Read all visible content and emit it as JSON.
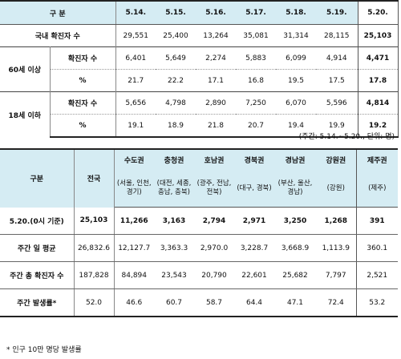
{
  "table1": {
    "header": [
      "구 분",
      "",
      "5.14.",
      "5.15.",
      "5.16.",
      "5.17.",
      "5.18.",
      "5.19.",
      "5.20."
    ],
    "domestic": {
      "label": "국내 확진자 수",
      "values": [
        "29,551",
        "25,400",
        "13,264",
        "35,081",
        "31,314",
        "28,115",
        "25,103"
      ]
    },
    "over60": {
      "label": "60세 이상",
      "count": {
        "label": "확진자 수",
        "values": [
          "6,401",
          "5,649",
          "2,274",
          "5,883",
          "6,099",
          "4,914",
          "4,471"
        ]
      },
      "pct": {
        "label": "%",
        "values": [
          "21.7",
          "22.2",
          "17.1",
          "16.8",
          "19.5",
          "17.5",
          "17.8"
        ]
      }
    },
    "under18": {
      "label": "18세 이하",
      "count": {
        "label": "확진자 수",
        "values": [
          "5,656",
          "4,798",
          "2,890",
          "7,250",
          "6,070",
          "5,596",
          "4,814"
        ]
      },
      "pct": {
        "label": "%",
        "values": [
          "19.1",
          "18.9",
          "21.8",
          "20.7",
          "19.4",
          "19.9",
          "19.2"
        ]
      }
    }
  },
  "unit_note": "(주간: 5.14.~5.20., 단위: 명)",
  "table2": {
    "corner": "구분",
    "national": "전국",
    "regions": [
      "수도권",
      "충청권",
      "호남권",
      "경북권",
      "경남권",
      "강원권",
      "제주권"
    ],
    "subregions": [
      "(서울, 인천, 경기)",
      "(대전, 세종, 충남, 충북)",
      "(광주, 전남, 전북)",
      "(대구, 경북)",
      "(부산, 울산, 경남)",
      "(강원)",
      "(제주)"
    ],
    "rows": [
      {
        "label": "5.20.(0시 기준)",
        "values": [
          "25,103",
          "11,266",
          "3,163",
          "2,794",
          "2,971",
          "3,250",
          "1,268",
          "391"
        ]
      },
      {
        "label": "주간 일 평균",
        "values": [
          "26,832.6",
          "12,127.7",
          "3,363.3",
          "2,970.0",
          "3,228.7",
          "3,668.9",
          "1,113.9",
          "360.1"
        ]
      },
      {
        "label": "주간 총 확진자 수",
        "values": [
          "187,828",
          "84,894",
          "23,543",
          "20,790",
          "22,601",
          "25,682",
          "7,797",
          "2,521"
        ]
      },
      {
        "label": "주간 발생률*",
        "values": [
          "52.0",
          "46.6",
          "60.7",
          "58.7",
          "64.4",
          "47.1",
          "72.4",
          "53.2"
        ]
      }
    ]
  },
  "footnote": "* 인구 10만 명당 발생률"
}
